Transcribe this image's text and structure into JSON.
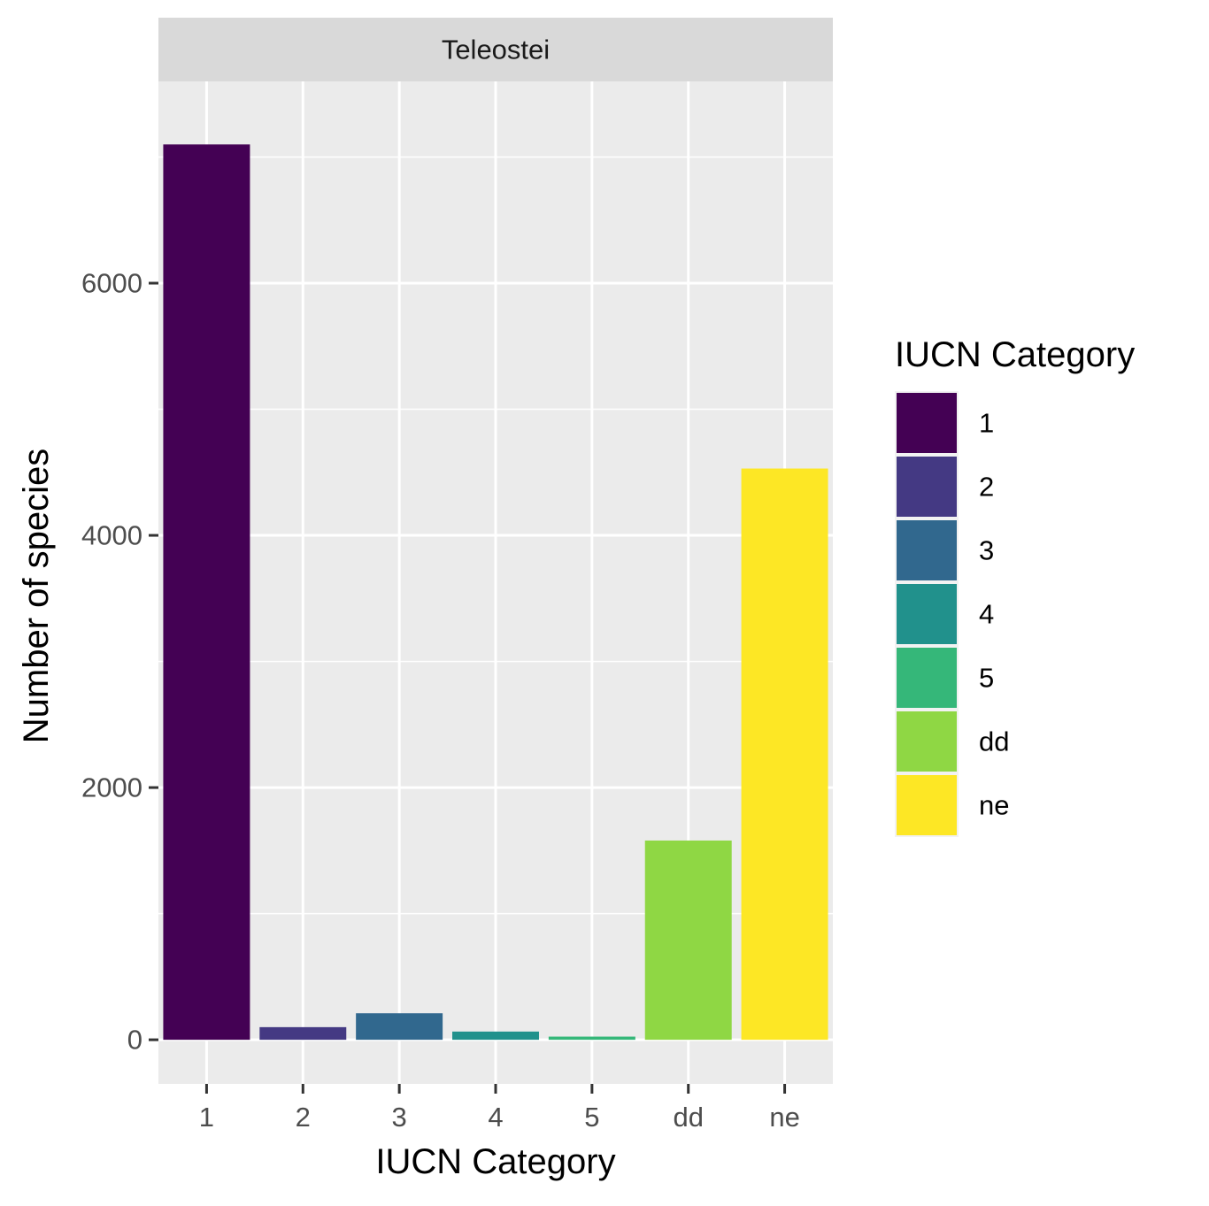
{
  "chart_data": {
    "type": "bar",
    "facet_label": "Teleostei",
    "xlabel": "IUCN Category",
    "ylabel": "Number of species",
    "categories": [
      "1",
      "2",
      "3",
      "4",
      "5",
      "dd",
      "ne"
    ],
    "values": [
      7100,
      100,
      210,
      65,
      25,
      1580,
      4530
    ],
    "colors": [
      "#440154",
      "#443983",
      "#31688E",
      "#21918C",
      "#35B779",
      "#8FD744",
      "#FDE725"
    ],
    "ylim": [
      -350,
      7600
    ],
    "yticks": [
      0,
      2000,
      4000,
      6000
    ],
    "ytick_labels": [
      "0",
      "2000",
      "4000",
      "6000"
    ],
    "grid": true,
    "legend": {
      "title": "IUCN Category",
      "position": "right",
      "items": [
        "1",
        "2",
        "3",
        "4",
        "5",
        "dd",
        "ne"
      ]
    }
  }
}
